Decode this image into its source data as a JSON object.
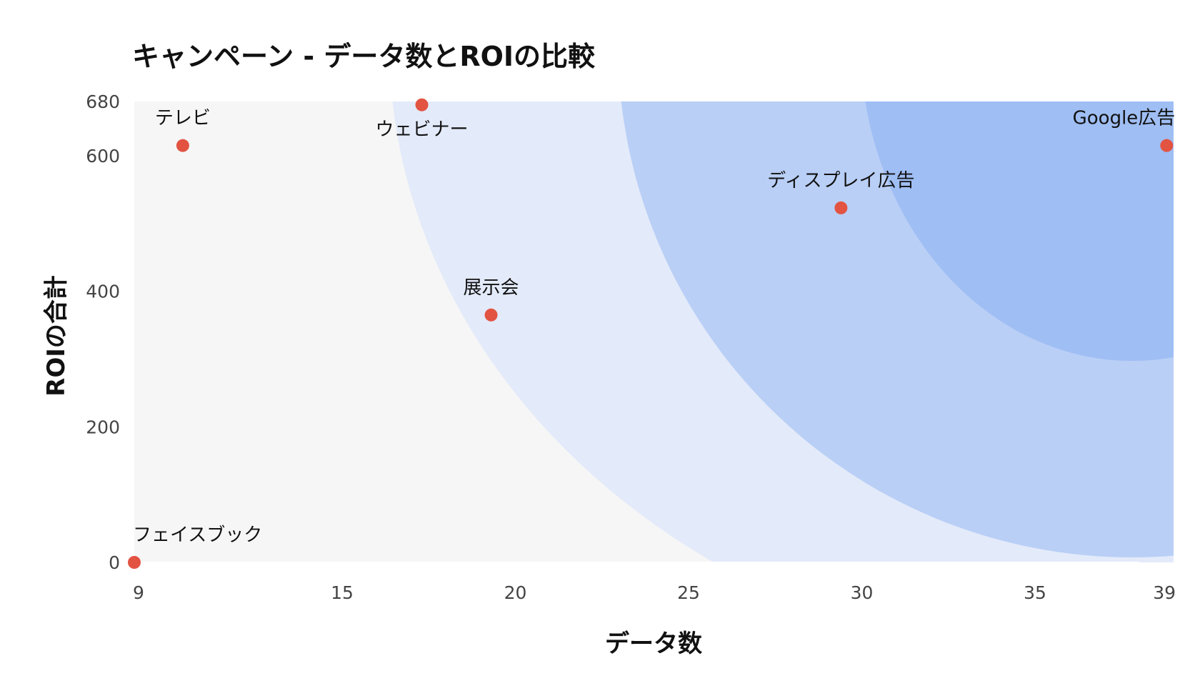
{
  "chart_data": {
    "type": "scatter",
    "title": "キャンペーン - データ数とROIの比較",
    "xlabel": "データ数",
    "ylabel": "ROIの合計",
    "xlim": [
      9,
      39
    ],
    "ylim": [
      0,
      680
    ],
    "xticks": [
      "9",
      "15",
      "20",
      "25",
      "30",
      "35",
      "39"
    ],
    "yticks": [
      "0",
      "200",
      "400",
      "600",
      "680"
    ],
    "points": [
      {
        "label": "フェイスブック",
        "x": 9.0,
        "y": 0
      },
      {
        "label": "テレビ",
        "x": 10.4,
        "y": 615
      },
      {
        "label": "ウェビナー",
        "x": 17.3,
        "y": 675
      },
      {
        "label": "展示会",
        "x": 19.3,
        "y": 365
      },
      {
        "label": "ディスプレイ広告",
        "x": 29.4,
        "y": 523
      },
      {
        "label": "Google広告",
        "x": 38.8,
        "y": 615
      }
    ],
    "colors": {
      "point": "#e35342",
      "plot_bg": "#f6f6f6",
      "band_1": "#e3eaf9",
      "band_2": "#b9cff6",
      "band_3": "#9fbef4"
    }
  }
}
